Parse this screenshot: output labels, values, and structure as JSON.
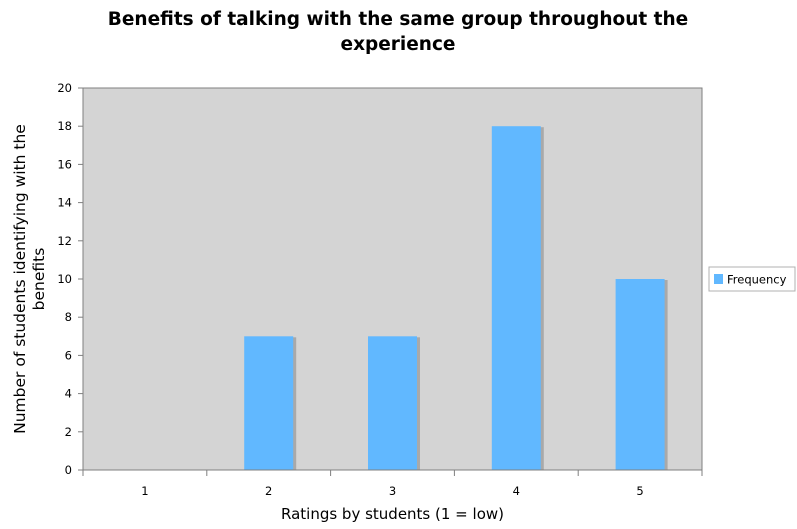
{
  "chart_data": {
    "type": "bar",
    "title": "Benefits of talking with the same group throughout the experience",
    "title_lines": [
      "Benefits of talking with the same group throughout the",
      "experience"
    ],
    "xlabel": "Ratings by students (1 = low)",
    "ylabel": "Number of students identifying with the benefits",
    "ylabel_lines": [
      "Number of students identifying with the",
      "benefits"
    ],
    "categories": [
      "1",
      "2",
      "3",
      "4",
      "5"
    ],
    "series": [
      {
        "name": "Frequency",
        "values": [
          0,
          7,
          7,
          18,
          10
        ]
      }
    ],
    "ylim": [
      0,
      20
    ],
    "yticks": [
      0,
      2,
      4,
      6,
      8,
      10,
      12,
      14,
      16,
      18,
      20
    ],
    "grid": false,
    "legend_position": "right",
    "colors": {
      "bar": "#61b8ff",
      "bar_shadow": "#a9a9a9",
      "plot_background": "#d4d4d4",
      "axis": "#7f7f7f",
      "text": "#000000"
    }
  }
}
